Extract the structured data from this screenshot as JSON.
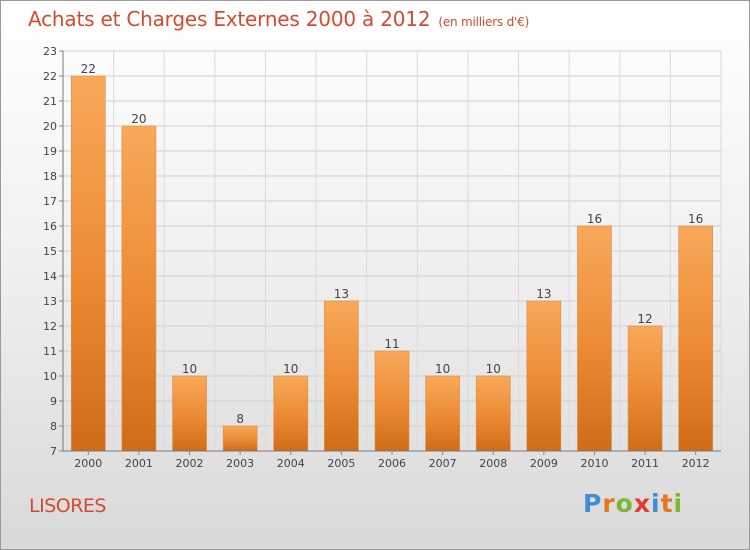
{
  "header": {
    "title": "Achats et Charges Externes 2000 à 2012",
    "subtitle": "(en milliers d'€)"
  },
  "footer": {
    "commune": "LISORES",
    "logo_text": "Proxiti",
    "logo_letters": [
      {
        "ch": "P",
        "color": "#3a8fd6"
      },
      {
        "ch": "r",
        "color": "#e8741e"
      },
      {
        "ch": "o",
        "color": "#7bb82e"
      },
      {
        "ch": "x",
        "color": "#e23b2e"
      },
      {
        "ch": "i",
        "color": "#3a8fd6"
      },
      {
        "ch": "t",
        "color": "#e8741e"
      },
      {
        "ch": "i",
        "color": "#7bb82e"
      }
    ]
  },
  "chart_data": {
    "type": "bar",
    "title": "Achats et Charges Externes 2000 à 2012",
    "subtitle": "(en milliers d'€)",
    "categories": [
      "2000",
      "2001",
      "2002",
      "2003",
      "2004",
      "2005",
      "2006",
      "2007",
      "2008",
      "2009",
      "2010",
      "2011",
      "2012"
    ],
    "values": [
      22,
      20,
      10,
      8,
      10,
      13,
      11,
      10,
      10,
      13,
      16,
      12,
      16
    ],
    "ylim": [
      7,
      23
    ],
    "yticks": [
      7,
      8,
      9,
      10,
      11,
      12,
      13,
      14,
      15,
      16,
      17,
      18,
      19,
      20,
      21,
      22,
      23
    ],
    "grid": true,
    "legend": "none",
    "xlabel": "",
    "ylabel": "",
    "bar_color": "#f0913a",
    "bar_color_light": "#f7a95a",
    "bar_color_dark": "#c96a17"
  }
}
